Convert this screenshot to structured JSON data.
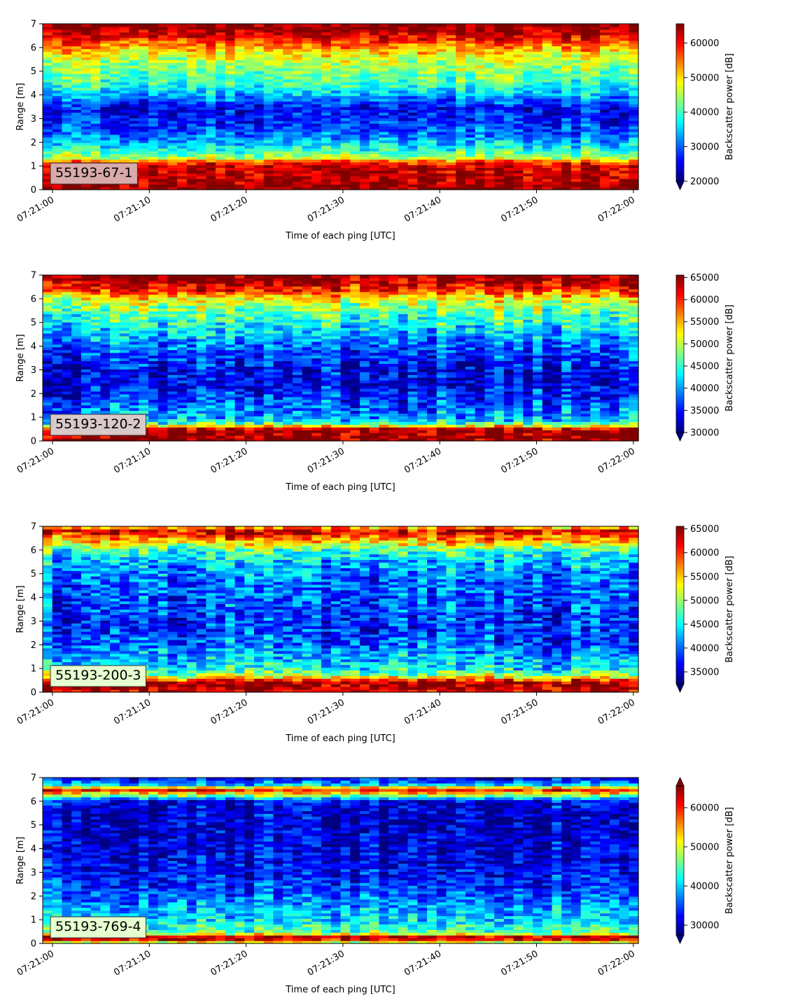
{
  "chart_data": [
    {
      "type": "heatmap",
      "label": "55193-67-1",
      "label_box_color": "#d9aaaa",
      "xlabel": "Time of each ping [UTC]",
      "ylabel": "Range [m]",
      "xticks": [
        "07:21:00",
        "07:21:10",
        "07:21:20",
        "07:21:30",
        "07:21:40",
        "07:21:50",
        "07:22:00"
      ],
      "yticks": [
        "0",
        "1",
        "2",
        "3",
        "4",
        "5",
        "6",
        "7"
      ],
      "ylim": [
        0,
        7
      ],
      "colorbar": {
        "label": "Backscatter power [dB]",
        "ticks": [
          "20000",
          "30000",
          "40000",
          "50000",
          "60000"
        ],
        "range": [
          20000,
          65535
        ],
        "extend": "min"
      },
      "colormap": "jet",
      "profile": [
        {
          "range": 0.0,
          "value": 65000
        },
        {
          "range": 0.2,
          "value": 65000
        },
        {
          "range": 0.3,
          "value": 64000
        },
        {
          "range": 1.0,
          "value": 62000
        },
        {
          "range": 1.15,
          "value": 58000
        },
        {
          "range": 1.35,
          "value": 46000
        },
        {
          "range": 1.6,
          "value": 40000
        },
        {
          "range": 1.9,
          "value": 36000
        },
        {
          "range": 2.4,
          "value": 30000
        },
        {
          "range": 3.0,
          "value": 27000
        },
        {
          "range": 3.5,
          "value": 26000
        },
        {
          "range": 4.0,
          "value": 34000
        },
        {
          "range": 4.5,
          "value": 40000
        },
        {
          "range": 5.0,
          "value": 43000
        },
        {
          "range": 5.5,
          "value": 46000
        },
        {
          "range": 6.0,
          "value": 53000
        },
        {
          "range": 6.4,
          "value": 60000
        },
        {
          "range": 6.8,
          "value": 65000
        },
        {
          "range": 7.0,
          "value": 65000
        }
      ]
    },
    {
      "type": "heatmap",
      "label": "55193-120-2",
      "label_box_color": "#d9c9c9",
      "xlabel": "Time of each ping [UTC]",
      "ylabel": "Range [m]",
      "xticks": [
        "07:21:00",
        "07:21:10",
        "07:21:20",
        "07:21:30",
        "07:21:40",
        "07:21:50",
        "07:22:00"
      ],
      "yticks": [
        "0",
        "1",
        "2",
        "3",
        "4",
        "5",
        "6",
        "7"
      ],
      "ylim": [
        0,
        7
      ],
      "colorbar": {
        "label": "Backscatter power [dB]",
        "ticks": [
          "30000",
          "35000",
          "40000",
          "45000",
          "50000",
          "55000",
          "60000",
          "65000"
        ],
        "range": [
          30000,
          65535
        ],
        "extend": "min"
      },
      "colormap": "jet",
      "profile": [
        {
          "range": 0.0,
          "value": 65000
        },
        {
          "range": 0.5,
          "value": 64000
        },
        {
          "range": 0.65,
          "value": 52000
        },
        {
          "range": 0.8,
          "value": 43000
        },
        {
          "range": 1.0,
          "value": 40000
        },
        {
          "range": 1.5,
          "value": 38000
        },
        {
          "range": 2.0,
          "value": 35000
        },
        {
          "range": 2.5,
          "value": 33500
        },
        {
          "range": 3.0,
          "value": 34000
        },
        {
          "range": 3.5,
          "value": 36000
        },
        {
          "range": 4.0,
          "value": 38000
        },
        {
          "range": 4.5,
          "value": 41000
        },
        {
          "range": 5.0,
          "value": 44000
        },
        {
          "range": 5.5,
          "value": 47000
        },
        {
          "range": 6.0,
          "value": 52000
        },
        {
          "range": 6.4,
          "value": 60000
        },
        {
          "range": 6.8,
          "value": 65000
        },
        {
          "range": 7.0,
          "value": 65000
        }
      ]
    },
    {
      "type": "heatmap",
      "label": "55193-200-3",
      "label_box_color": "#e6ffd0",
      "xlabel": "Time of each ping [UTC]",
      "ylabel": "Range [m]",
      "xticks": [
        "07:21:00",
        "07:21:10",
        "07:21:20",
        "07:21:30",
        "07:21:40",
        "07:21:50",
        "07:22:00"
      ],
      "yticks": [
        "0",
        "1",
        "2",
        "3",
        "4",
        "5",
        "6",
        "7"
      ],
      "ylim": [
        0,
        7
      ],
      "colorbar": {
        "label": "Backscatter power [dB]",
        "ticks": [
          "35000",
          "40000",
          "45000",
          "50000",
          "55000",
          "60000",
          "65000"
        ],
        "range": [
          32500,
          65535
        ],
        "extend": "min"
      },
      "colormap": "jet",
      "profile": [
        {
          "range": 0.0,
          "value": 62000
        },
        {
          "range": 0.2,
          "value": 65000
        },
        {
          "range": 0.45,
          "value": 64000
        },
        {
          "range": 0.6,
          "value": 55000
        },
        {
          "range": 0.8,
          "value": 48000
        },
        {
          "range": 1.0,
          "value": 45000
        },
        {
          "range": 1.5,
          "value": 43000
        },
        {
          "range": 2.0,
          "value": 40000
        },
        {
          "range": 2.5,
          "value": 38500
        },
        {
          "range": 3.0,
          "value": 38500
        },
        {
          "range": 3.5,
          "value": 39000
        },
        {
          "range": 4.0,
          "value": 39500
        },
        {
          "range": 4.5,
          "value": 40000
        },
        {
          "range": 5.0,
          "value": 41000
        },
        {
          "range": 5.5,
          "value": 43000
        },
        {
          "range": 6.0,
          "value": 47000
        },
        {
          "range": 6.4,
          "value": 56000
        },
        {
          "range": 6.8,
          "value": 63000
        },
        {
          "range": 7.0,
          "value": 55000
        }
      ]
    },
    {
      "type": "heatmap",
      "label": "55193-769-4",
      "label_box_color": "#e6ffd0",
      "xlabel": "Time of each ping [UTC]",
      "ylabel": "Range [m]",
      "xticks": [
        "07:21:00",
        "07:21:10",
        "07:21:20",
        "07:21:30",
        "07:21:40",
        "07:21:50",
        "07:22:00"
      ],
      "yticks": [
        "0",
        "1",
        "2",
        "3",
        "4",
        "5",
        "6",
        "7"
      ],
      "ylim": [
        0,
        7
      ],
      "colorbar": {
        "label": "Backscatter power [dB]",
        "ticks": [
          "30000",
          "40000",
          "50000",
          "60000"
        ],
        "range": [
          27500,
          65535
        ],
        "extend": "both"
      },
      "colormap": "jet",
      "profile": [
        {
          "range": 0.0,
          "value": 45000
        },
        {
          "range": 0.2,
          "value": 65000
        },
        {
          "range": 0.3,
          "value": 62000
        },
        {
          "range": 0.45,
          "value": 46000
        },
        {
          "range": 0.8,
          "value": 42000
        },
        {
          "range": 1.2,
          "value": 40000
        },
        {
          "range": 1.8,
          "value": 37000
        },
        {
          "range": 2.5,
          "value": 34000
        },
        {
          "range": 3.0,
          "value": 32500
        },
        {
          "range": 3.5,
          "value": 31500
        },
        {
          "range": 4.0,
          "value": 31000
        },
        {
          "range": 5.0,
          "value": 30500
        },
        {
          "range": 6.0,
          "value": 31500
        },
        {
          "range": 6.3,
          "value": 50000
        },
        {
          "range": 6.5,
          "value": 62000
        },
        {
          "range": 6.7,
          "value": 40000
        },
        {
          "range": 7.0,
          "value": 31000
        }
      ]
    }
  ]
}
